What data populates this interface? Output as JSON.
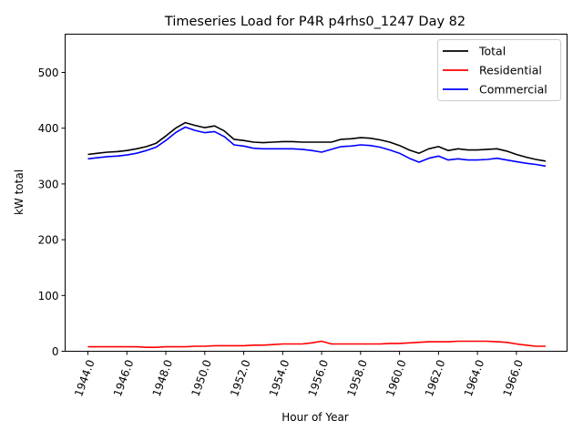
{
  "chart_data": {
    "type": "line",
    "title": "Timeseries Load for P4R p4rhs0_1247  Day 82",
    "xlabel": "Hour of Year",
    "ylabel": "kW total",
    "xlim": [
      1942.83,
      1968.6
    ],
    "ylim": [
      0,
      568.6
    ],
    "xticks": [
      1944,
      1946,
      1948,
      1950,
      1952,
      1954,
      1956,
      1958,
      1960,
      1962,
      1964,
      1966
    ],
    "xtick_labels": [
      "1944.0",
      "1946.0",
      "1948.0",
      "1950.0",
      "1952.0",
      "1954.0",
      "1956.0",
      "1958.0",
      "1960.0",
      "1962.0",
      "1964.0",
      "1966.0"
    ],
    "yticks": [
      0,
      100,
      200,
      300,
      400,
      500
    ],
    "ytick_labels": [
      "0",
      "100",
      "200",
      "300",
      "400",
      "500"
    ],
    "grid": false,
    "legend_position": "top-right",
    "x_start": 1944,
    "x_step": 0.5,
    "series": [
      {
        "name": "Total",
        "color": "#000000",
        "values": [
          353,
          355,
          357,
          358,
          360,
          363,
          367,
          373,
          386,
          400,
          410,
          405,
          401,
          404,
          395,
          380,
          378,
          375,
          374,
          375,
          376,
          376,
          375,
          375,
          375,
          375,
          380,
          381,
          383,
          382,
          379,
          375,
          369,
          361,
          355,
          363,
          367,
          360,
          363,
          361,
          361,
          362,
          363,
          359,
          353,
          348,
          344,
          341
        ]
      },
      {
        "name": "Residential",
        "color": "#ff0000",
        "values": [
          8,
          8,
          8,
          8,
          8,
          8,
          7,
          7,
          8,
          8,
          8,
          9,
          9,
          10,
          10,
          10,
          10,
          11,
          11,
          12,
          13,
          13,
          13,
          15,
          18,
          13,
          13,
          13,
          13,
          13,
          13,
          14,
          14,
          15,
          16,
          17,
          17,
          17,
          18,
          18,
          18,
          18,
          17,
          16,
          13,
          11,
          9,
          9
        ]
      },
      {
        "name": "Commercial",
        "color": "#0000ff",
        "values": [
          345,
          347,
          349,
          350,
          352,
          355,
          360,
          366,
          378,
          392,
          402,
          396,
          392,
          394,
          385,
          370,
          368,
          364,
          363,
          363,
          363,
          363,
          362,
          360,
          357,
          362,
          367,
          368,
          370,
          369,
          366,
          361,
          355,
          346,
          339,
          346,
          350,
          343,
          345,
          343,
          343,
          344,
          346,
          343,
          340,
          337,
          335,
          332
        ]
      }
    ]
  }
}
